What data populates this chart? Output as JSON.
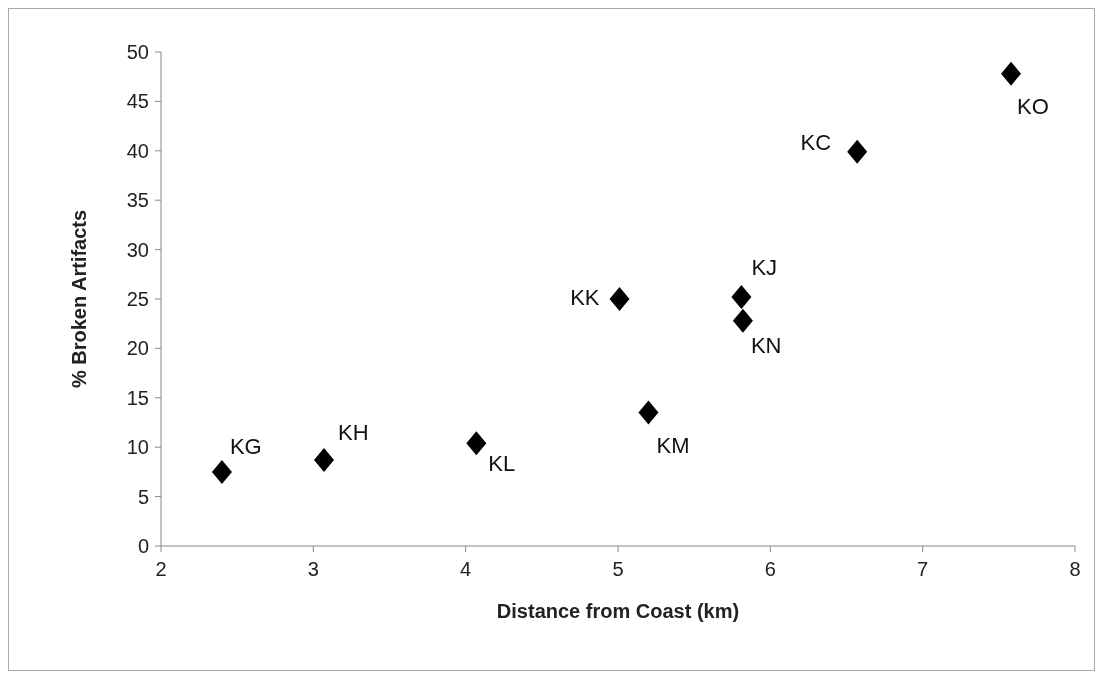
{
  "chart_data": {
    "type": "scatter",
    "xlabel": "Distance from Coast (km)",
    "ylabel": "% Broken Artifacts",
    "x": [
      2.4,
      3.07,
      4.07,
      5.01,
      5.2,
      5.81,
      5.82,
      6.57,
      7.58
    ],
    "values": [
      7.5,
      8.7,
      10.4,
      25.0,
      13.5,
      25.2,
      22.8,
      39.9,
      47.8
    ],
    "color": "#000000",
    "marker": "diamond",
    "xlim": [
      2,
      8
    ],
    "xticks": [
      2,
      3,
      4,
      5,
      6,
      7,
      8
    ],
    "ylim": [
      0,
      50
    ],
    "yticks": [
      0,
      5,
      10,
      15,
      20,
      25,
      30,
      35,
      40,
      45,
      50
    ],
    "annotations": [
      {
        "text": "KG",
        "x": 2.4,
        "y": 7.5
      },
      {
        "text": "KH",
        "x": 3.07,
        "y": 8.7
      },
      {
        "text": "KL",
        "x": 4.07,
        "y": 10.4
      },
      {
        "text": "KK",
        "x": 5.01,
        "y": 25.0
      },
      {
        "text": "KM",
        "x": 5.2,
        "y": 13.5
      },
      {
        "text": "KJ",
        "x": 5.81,
        "y": 25.2
      },
      {
        "text": "KN",
        "x": 5.82,
        "y": 22.8
      },
      {
        "text": "KC",
        "x": 6.57,
        "y": 39.9
      },
      {
        "text": "KO",
        "x": 7.58,
        "y": 47.8
      }
    ]
  }
}
